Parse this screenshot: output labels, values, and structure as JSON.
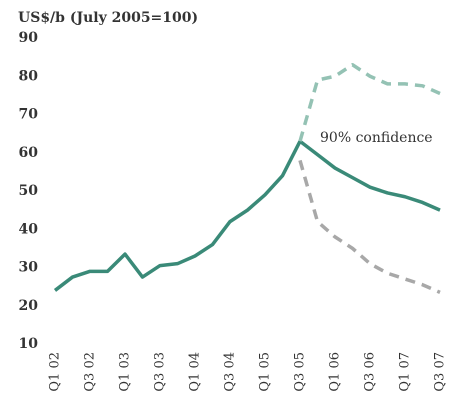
{
  "chart_data": {
    "type": "line",
    "title": "US$/b (July  2005=100)",
    "annotation": "90% confidence",
    "categories": [
      "Q1 02",
      null,
      "Q3 02",
      null,
      "Q1 03",
      null,
      "Q3 03",
      null,
      "Q1 04",
      null,
      "Q3 04",
      null,
      "Q1 05",
      null,
      "Q3 05",
      null,
      "Q1 06",
      null,
      "Q3 06",
      null,
      "Q1 07",
      null,
      "Q3 07"
    ],
    "series": [
      {
        "color": "#3a8a78",
        "dash": false,
        "values": [
          24,
          27.5,
          29,
          29,
          33.5,
          27.5,
          30.5,
          31,
          33,
          36,
          42,
          45,
          49,
          54,
          63,
          59.5,
          56,
          53.5,
          51,
          49.5,
          48.5,
          47,
          45
        ]
      },
      {
        "color": "#94c2b4",
        "dash": true,
        "values": [
          null,
          null,
          null,
          null,
          null,
          null,
          null,
          null,
          null,
          null,
          null,
          null,
          null,
          null,
          63,
          79,
          80,
          83,
          80,
          78,
          78,
          77.5,
          75.5
        ]
      },
      {
        "color": "#a8a8a8",
        "dash": true,
        "values": [
          null,
          null,
          null,
          null,
          null,
          null,
          null,
          null,
          null,
          null,
          null,
          null,
          null,
          null,
          58,
          42,
          38,
          35,
          31,
          28.5,
          27,
          25.5,
          23.5
        ]
      }
    ],
    "ylim": [
      10,
      90
    ],
    "yticks": [
      10,
      20,
      30,
      40,
      50,
      60,
      70,
      80,
      90
    ],
    "grid": false
  }
}
